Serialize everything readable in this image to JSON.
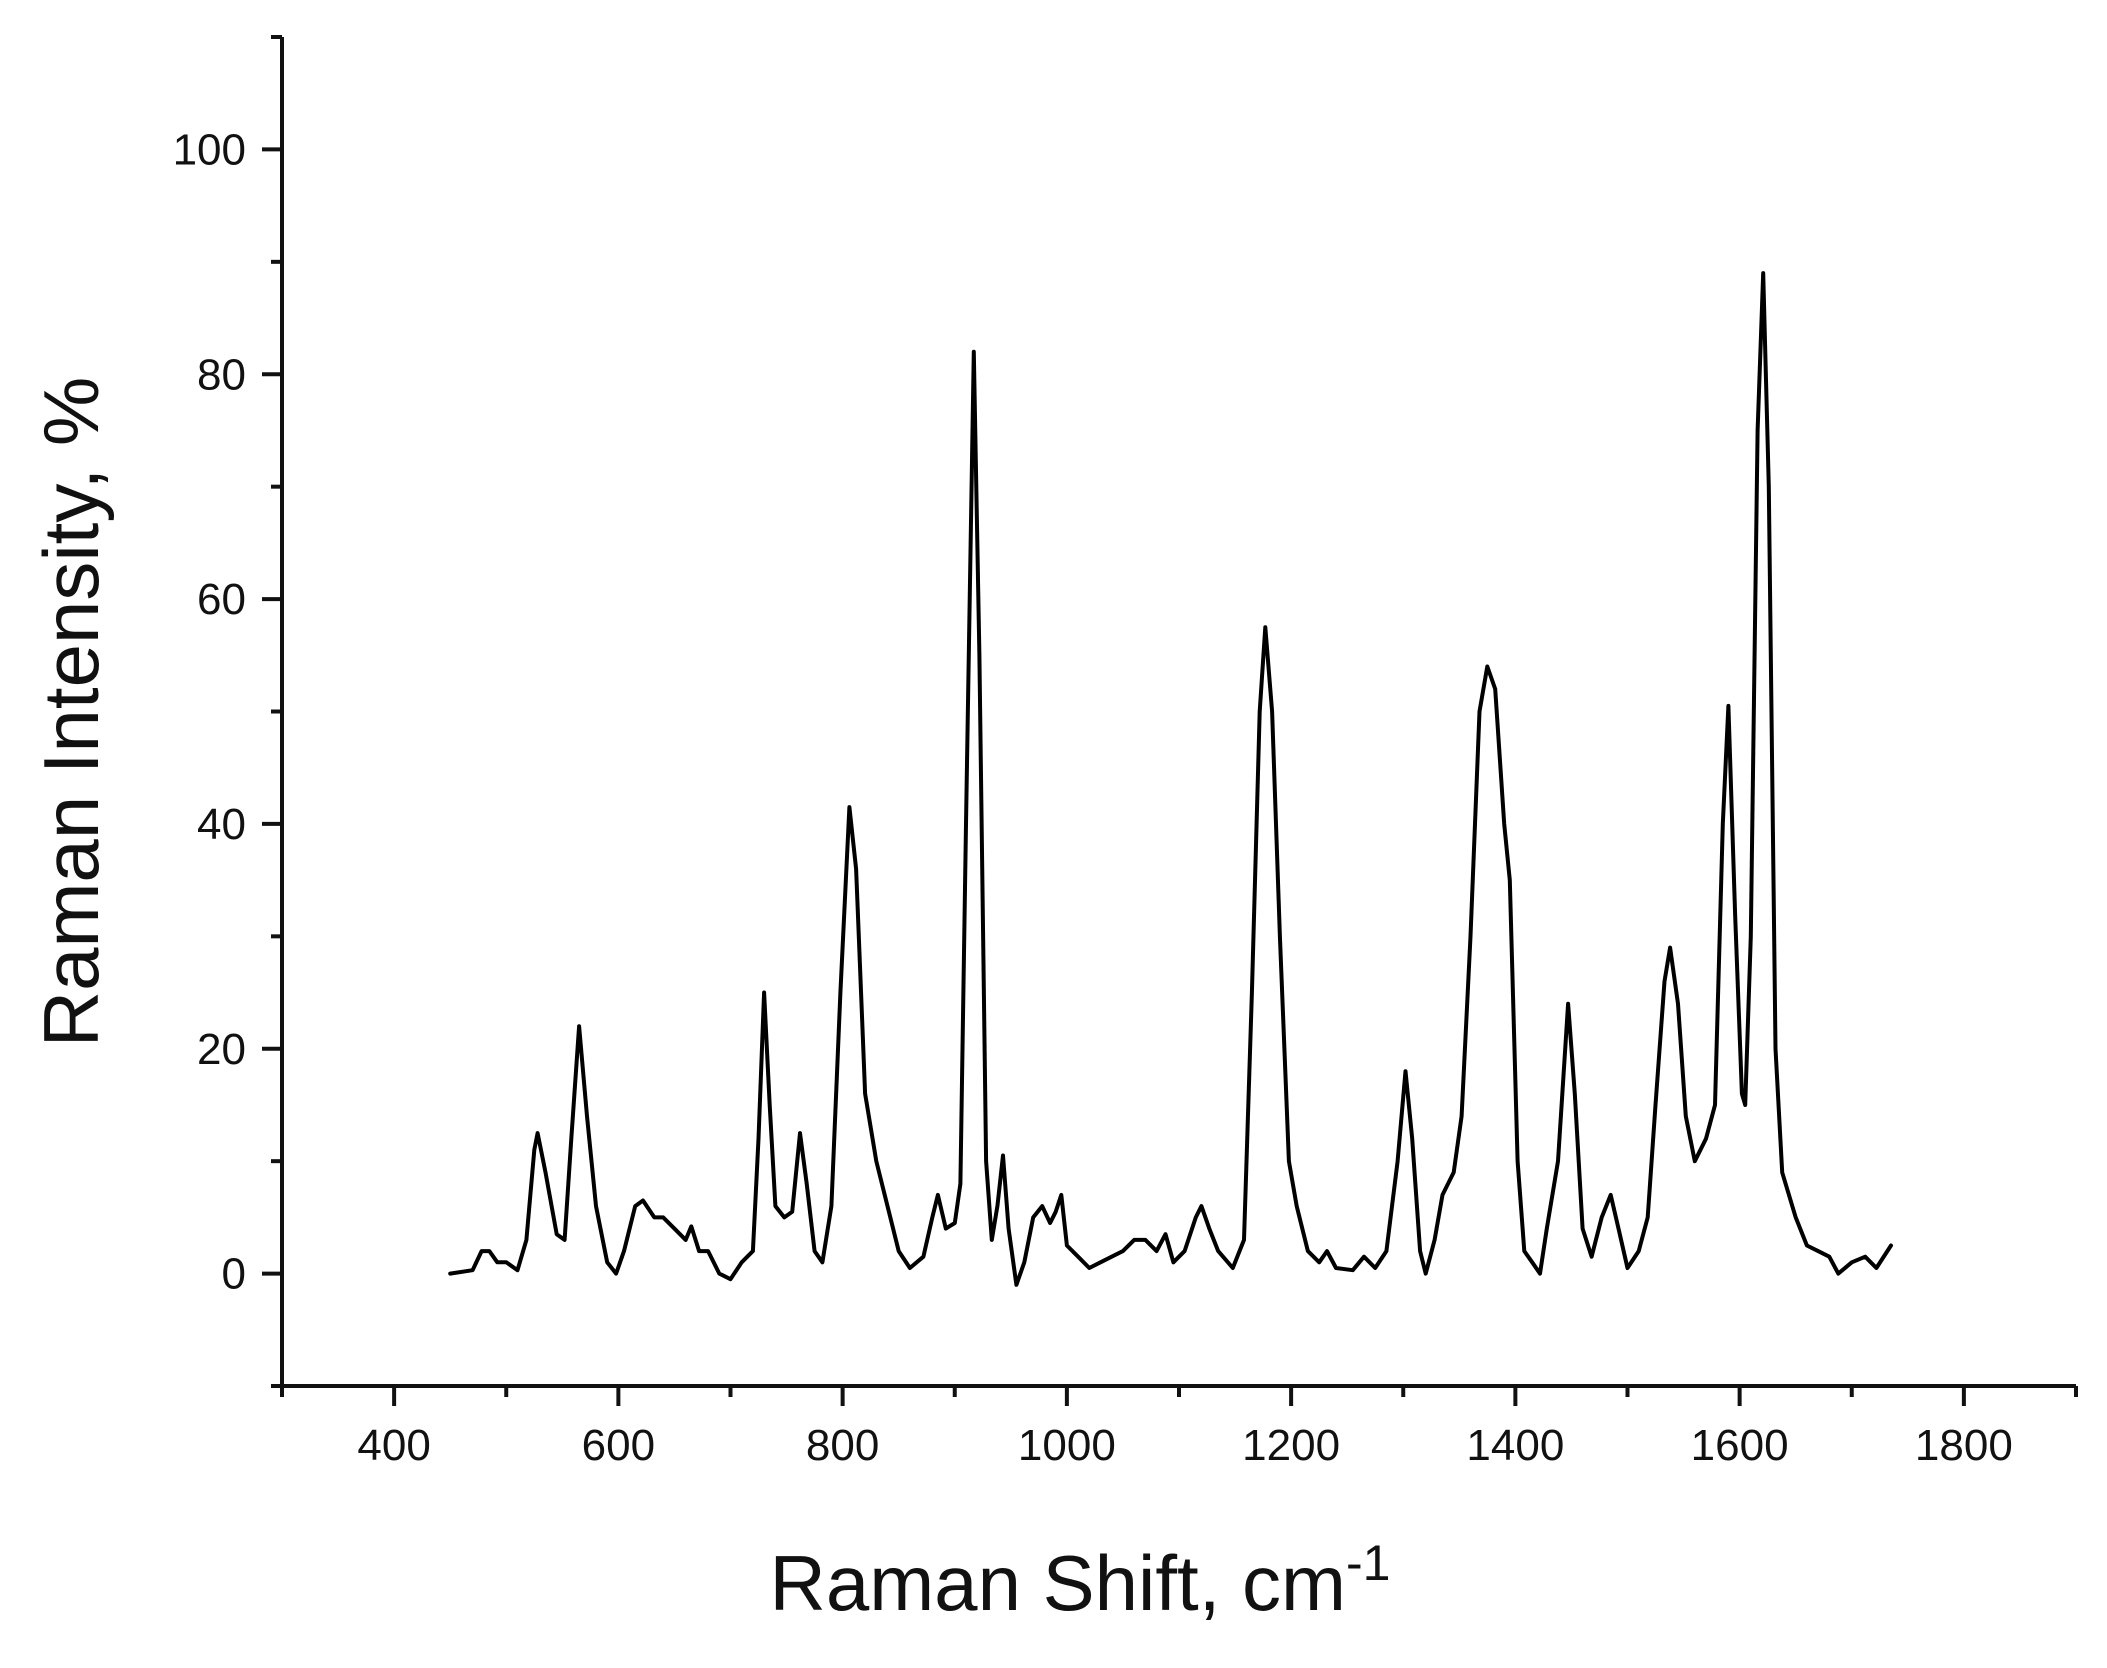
{
  "chart_data": {
    "type": "line",
    "x_label": "Raman Shift, cm",
    "x_label_superscript": "-1",
    "y_label": "Raman Intensity, %",
    "color": "#000000",
    "xlim": [
      300,
      1900
    ],
    "ylim": [
      -10,
      110
    ],
    "xticks": [
      400,
      600,
      800,
      1000,
      1200,
      1400,
      1600,
      1800
    ],
    "xticks_minor": [
      300,
      500,
      700,
      900,
      1100,
      1300,
      1500,
      1700,
      1900
    ],
    "yticks": [
      0,
      20,
      40,
      60,
      80,
      100
    ],
    "yticks_minor": [
      -10,
      10,
      30,
      50,
      70,
      90,
      110
    ],
    "grid": false,
    "x": [
      450,
      470,
      478,
      485,
      492,
      500,
      510,
      518,
      525,
      528,
      535,
      545,
      552,
      558,
      565,
      572,
      580,
      590,
      598,
      605,
      615,
      622,
      632,
      640,
      650,
      660,
      665,
      672,
      680,
      690,
      700,
      710,
      720,
      725,
      730,
      735,
      740,
      748,
      755,
      762,
      768,
      775,
      782,
      790,
      798,
      806,
      812,
      820,
      830,
      840,
      850,
      860,
      872,
      880,
      885,
      892,
      900,
      905,
      910,
      917,
      922,
      928,
      933,
      938,
      943,
      948,
      955,
      962,
      970,
      978,
      985,
      990,
      995,
      1000,
      1010,
      1020,
      1030,
      1040,
      1050,
      1060,
      1070,
      1080,
      1088,
      1095,
      1105,
      1115,
      1120,
      1127,
      1135,
      1148,
      1158,
      1165,
      1172,
      1177,
      1183,
      1190,
      1198,
      1205,
      1215,
      1225,
      1232,
      1240,
      1255,
      1265,
      1275,
      1285,
      1295,
      1302,
      1308,
      1315,
      1320,
      1328,
      1335,
      1345,
      1352,
      1360,
      1368,
      1375,
      1382,
      1390,
      1395,
      1402,
      1408,
      1415,
      1422,
      1428,
      1438,
      1447,
      1453,
      1460,
      1468,
      1477,
      1485,
      1492,
      1500,
      1510,
      1518,
      1525,
      1533,
      1538,
      1545,
      1552,
      1560,
      1570,
      1578,
      1585,
      1590,
      1596,
      1602,
      1605,
      1610,
      1616,
      1621,
      1626,
      1632,
      1638,
      1650,
      1660,
      1670,
      1680,
      1688,
      1700,
      1712,
      1722,
      1735
    ],
    "y": [
      0,
      0.3,
      2,
      2,
      1,
      1,
      0.3,
      3,
      11,
      12.5,
      9,
      3.5,
      3,
      12,
      22,
      14,
      6,
      1,
      0,
      2,
      6,
      6.5,
      5,
      5,
      4,
      3,
      4.2,
      2,
      2,
      0,
      -0.5,
      1,
      2,
      12,
      25,
      15,
      6,
      5,
      5.5,
      12.5,
      8,
      2,
      1,
      6,
      25,
      41.5,
      36,
      16,
      10,
      6,
      2,
      0.5,
      1.5,
      5,
      7,
      4,
      4.5,
      8,
      40,
      82,
      55,
      10,
      3,
      6,
      10.5,
      4,
      -1,
      1,
      5,
      6,
      4.5,
      5.5,
      7,
      2.5,
      1.5,
      0.5,
      1,
      1.5,
      2,
      3,
      3,
      2,
      3.5,
      1,
      2,
      5,
      6,
      4,
      2,
      0.5,
      3,
      25,
      50,
      57.5,
      50,
      30,
      10,
      6,
      2,
      1,
      2,
      0.5,
      0.3,
      1.5,
      0.5,
      2,
      10,
      18,
      12,
      2,
      0,
      3,
      7,
      9,
      14,
      30,
      50,
      54,
      52,
      40,
      35,
      10,
      2,
      1,
      0,
      4,
      10,
      24,
      16,
      4,
      1.5,
      5,
      7,
      4,
      0.5,
      2,
      5,
      15,
      26,
      29,
      24,
      14,
      10,
      12,
      15,
      40,
      50.5,
      32,
      16,
      15,
      30,
      75,
      89,
      70,
      20,
      9,
      5,
      2.5,
      2,
      1.5,
      0,
      1,
      1.5,
      0.5,
      2.5
    ]
  }
}
